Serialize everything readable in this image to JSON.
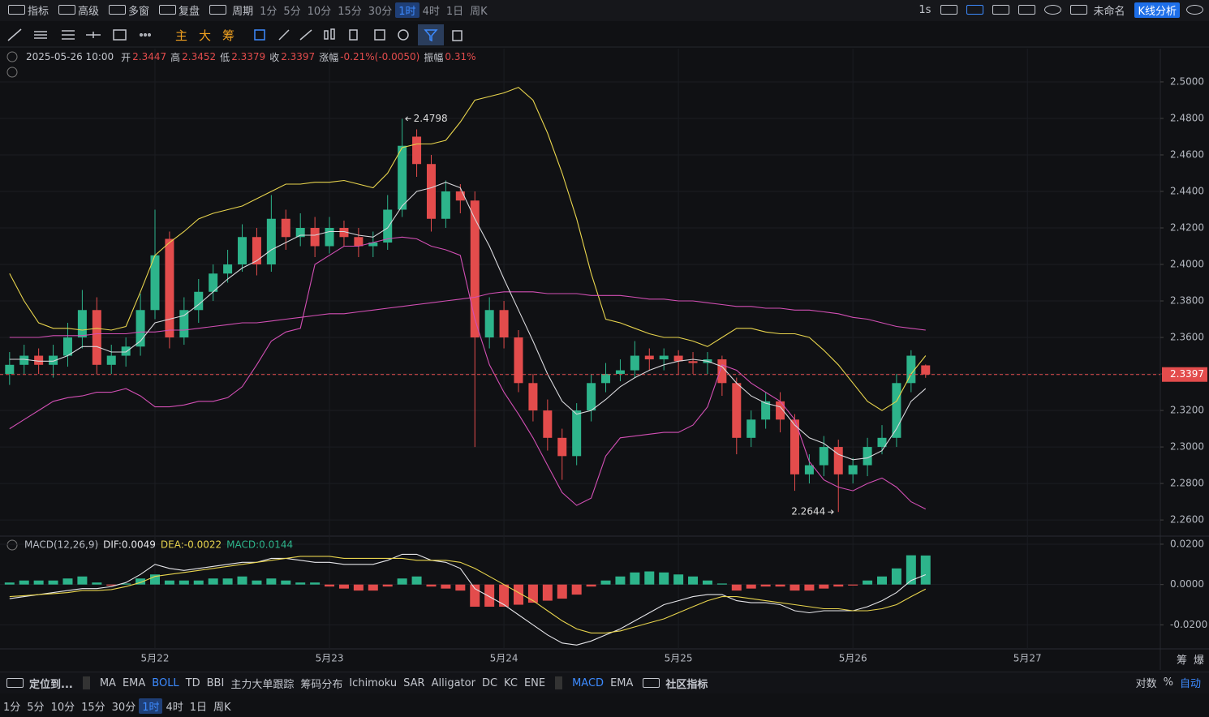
{
  "toolbar": {
    "menu": [
      "指标",
      "高级",
      "多窗",
      "复盘"
    ],
    "period": "周期",
    "intervals": [
      "1分",
      "5分",
      "10分",
      "15分",
      "30分",
      "1时",
      "4时",
      "1日",
      "周K"
    ],
    "active_interval": "1时",
    "speed": "1s",
    "layout_name": "未命名",
    "analysis": "K线分析"
  },
  "draw_toolbar": {
    "chips": [
      "主",
      "大",
      "筹"
    ]
  },
  "info": {
    "time": "2025-05-26 10:00",
    "fields": [
      {
        "label": "开",
        "value": "2.3447"
      },
      {
        "label": "高",
        "value": "2.3452"
      },
      {
        "label": "低",
        "value": "2.3379"
      },
      {
        "label": "收",
        "value": "2.3397"
      },
      {
        "label": "涨幅",
        "value": "-0.21%(-0.0050)"
      },
      {
        "label": "振幅",
        "value": "0.31%"
      }
    ]
  },
  "chart_data": [
    {
      "type": "candlestick",
      "up_color": "#2db48b",
      "down_color": "#e34c4c",
      "grid": true,
      "open": [
        2.34,
        2.345,
        2.35,
        2.345,
        2.35,
        2.36,
        2.375,
        2.345,
        2.35,
        2.355,
        2.375,
        2.414,
        2.36,
        2.375,
        2.385,
        2.395,
        2.4,
        2.415,
        2.4,
        2.425,
        2.415,
        2.42,
        2.41,
        2.42,
        2.415,
        2.41,
        2.412,
        2.43,
        2.47,
        2.455,
        2.425,
        2.44,
        2.435,
        2.36,
        2.375,
        2.36,
        2.335,
        2.32,
        2.305,
        2.295,
        2.32,
        2.335,
        2.34,
        2.342,
        2.35,
        2.348,
        2.35,
        2.347,
        2.346,
        2.348,
        2.335,
        2.305,
        2.315,
        2.325,
        2.315,
        2.285,
        2.29,
        2.3,
        2.285,
        2.29,
        2.3,
        2.305,
        2.335,
        2.3447
      ],
      "high": [
        2.352,
        2.356,
        2.354,
        2.356,
        2.368,
        2.386,
        2.382,
        2.356,
        2.36,
        2.384,
        2.43,
        2.418,
        2.382,
        2.392,
        2.4,
        2.408,
        2.422,
        2.42,
        2.438,
        2.43,
        2.428,
        2.426,
        2.426,
        2.424,
        2.42,
        2.418,
        2.438,
        2.4798,
        2.474,
        2.46,
        2.446,
        2.444,
        2.44,
        2.382,
        2.38,
        2.364,
        2.34,
        2.326,
        2.31,
        2.324,
        2.34,
        2.346,
        2.348,
        2.358,
        2.354,
        2.354,
        2.353,
        2.352,
        2.352,
        2.35,
        2.338,
        2.32,
        2.33,
        2.33,
        2.318,
        2.296,
        2.306,
        2.304,
        2.294,
        2.305,
        2.312,
        2.34,
        2.353,
        2.3452
      ],
      "low": [
        2.334,
        2.34,
        2.34,
        2.338,
        2.344,
        2.354,
        2.34,
        2.34,
        2.344,
        2.35,
        2.37,
        2.354,
        2.356,
        2.368,
        2.38,
        2.39,
        2.396,
        2.394,
        2.396,
        2.408,
        2.41,
        2.404,
        2.406,
        2.41,
        2.404,
        2.404,
        2.408,
        2.426,
        2.448,
        2.418,
        2.42,
        2.428,
        2.3,
        2.354,
        2.354,
        2.33,
        2.314,
        2.298,
        2.282,
        2.29,
        2.314,
        2.33,
        2.336,
        2.338,
        2.342,
        2.342,
        2.34,
        2.34,
        2.34,
        2.328,
        2.296,
        2.3,
        2.31,
        2.308,
        2.276,
        2.28,
        2.284,
        2.2644,
        2.28,
        2.284,
        2.296,
        2.3,
        2.33,
        2.3379
      ],
      "close": [
        2.345,
        2.35,
        2.345,
        2.35,
        2.36,
        2.375,
        2.345,
        2.35,
        2.355,
        2.375,
        2.405,
        2.36,
        2.375,
        2.385,
        2.395,
        2.4,
        2.415,
        2.4,
        2.425,
        2.415,
        2.42,
        2.41,
        2.42,
        2.415,
        2.41,
        2.412,
        2.43,
        2.465,
        2.455,
        2.425,
        2.44,
        2.435,
        2.36,
        2.375,
        2.36,
        2.335,
        2.32,
        2.305,
        2.295,
        2.32,
        2.335,
        2.34,
        2.342,
        2.35,
        2.348,
        2.35,
        2.347,
        2.346,
        2.348,
        2.335,
        2.305,
        2.315,
        2.325,
        2.315,
        2.285,
        2.29,
        2.3,
        2.285,
        2.29,
        2.3,
        2.305,
        2.335,
        2.35,
        2.3397
      ],
      "series": [
        {
          "color": "#e8d44d",
          "values": [
            2.395,
            2.38,
            2.368,
            2.365,
            2.365,
            2.364,
            2.365,
            2.364,
            2.366,
            2.385,
            2.405,
            2.412,
            2.418,
            2.425,
            2.428,
            2.43,
            2.432,
            2.436,
            2.44,
            2.444,
            2.444,
            2.445,
            2.445,
            2.446,
            2.444,
            2.442,
            2.45,
            2.464,
            2.466,
            2.466,
            2.468,
            2.478,
            2.49,
            2.492,
            2.494,
            2.497,
            2.49,
            2.472,
            2.45,
            2.425,
            2.395,
            2.37,
            2.368,
            2.365,
            2.362,
            2.36,
            2.36,
            2.358,
            2.355,
            2.36,
            2.365,
            2.365,
            2.363,
            2.362,
            2.362,
            2.36,
            2.353,
            2.345,
            2.335,
            2.325,
            2.32,
            2.325,
            2.34,
            2.35
          ]
        },
        {
          "color": "#d24fb4",
          "values": [
            2.36,
            2.36,
            2.36,
            2.361,
            2.361,
            2.361,
            2.362,
            2.362,
            2.362,
            2.363,
            2.363,
            2.364,
            2.364,
            2.365,
            2.366,
            2.367,
            2.368,
            2.368,
            2.369,
            2.37,
            2.371,
            2.372,
            2.373,
            2.373,
            2.374,
            2.375,
            2.376,
            2.377,
            2.378,
            2.379,
            2.38,
            2.381,
            2.382,
            2.384,
            2.385,
            2.385,
            2.385,
            2.384,
            2.384,
            2.384,
            2.383,
            2.383,
            2.383,
            2.382,
            2.381,
            2.381,
            2.38,
            2.38,
            2.379,
            2.378,
            2.377,
            2.377,
            2.376,
            2.376,
            2.375,
            2.375,
            2.374,
            2.373,
            2.371,
            2.37,
            2.368,
            2.366,
            2.365,
            2.364
          ]
        },
        {
          "color": "#d24fb4",
          "values": [
            2.31,
            2.315,
            2.32,
            2.325,
            2.327,
            2.328,
            2.33,
            2.33,
            2.332,
            2.328,
            2.322,
            2.322,
            2.323,
            2.325,
            2.325,
            2.327,
            2.333,
            2.345,
            2.358,
            2.363,
            2.365,
            2.4,
            2.405,
            2.41,
            2.41,
            2.412,
            2.414,
            2.415,
            2.414,
            2.41,
            2.408,
            2.405,
            2.37,
            2.345,
            2.33,
            2.318,
            2.305,
            2.29,
            2.275,
            2.268,
            2.272,
            2.295,
            2.305,
            2.306,
            2.307,
            2.308,
            2.308,
            2.312,
            2.322,
            2.345,
            2.342,
            2.335,
            2.33,
            2.325,
            2.315,
            2.292,
            2.282,
            2.278,
            2.276,
            2.28,
            2.283,
            2.278,
            2.27,
            2.266
          ]
        },
        {
          "color": "#d8d8dc",
          "values": [
            2.348,
            2.348,
            2.347,
            2.347,
            2.35,
            2.355,
            2.355,
            2.352,
            2.352,
            2.358,
            2.368,
            2.37,
            2.372,
            2.378,
            2.385,
            2.392,
            2.398,
            2.402,
            2.408,
            2.412,
            2.416,
            2.416,
            2.418,
            2.418,
            2.416,
            2.415,
            2.42,
            2.432,
            2.44,
            2.442,
            2.445,
            2.442,
            2.425,
            2.41,
            2.392,
            2.375,
            2.358,
            2.34,
            2.325,
            2.318,
            2.32,
            2.326,
            2.333,
            2.338,
            2.342,
            2.345,
            2.347,
            2.348,
            2.347,
            2.344,
            2.335,
            2.328,
            2.324,
            2.322,
            2.312,
            2.305,
            2.302,
            2.296,
            2.293,
            2.294,
            2.298,
            2.31,
            2.325,
            2.332
          ]
        }
      ],
      "ylim": [
        2.2516,
        2.5182
      ],
      "yticks": [
        {
          "value": 2.26,
          "label": "2.2600"
        },
        {
          "value": 2.28,
          "label": "2.2800"
        },
        {
          "value": 2.3,
          "label": "2.3000"
        },
        {
          "value": 2.32,
          "label": "2.3200"
        },
        {
          "value": 2.34,
          "label": "2.3400"
        },
        {
          "value": 2.36,
          "label": "2.3600"
        },
        {
          "value": 2.38,
          "label": "2.3800"
        },
        {
          "value": 2.4,
          "label": "2.4000"
        },
        {
          "value": 2.42,
          "label": "2.4200"
        },
        {
          "value": 2.44,
          "label": "2.4400"
        },
        {
          "value": 2.46,
          "label": "2.4600"
        },
        {
          "value": 2.48,
          "label": "2.4800"
        },
        {
          "value": 2.5,
          "label": "2.5000"
        }
      ],
      "last_price": 2.3397,
      "max_label": 2.4798,
      "min_label": 2.2644,
      "date_labels": [
        "5月22",
        "5月23",
        "5月24",
        "5月25",
        "5月26",
        "5月27"
      ]
    },
    {
      "type": "macd",
      "legend": [
        {
          "text": "MACD(12,26,9)",
          "color": "#b8bcc4"
        },
        {
          "text": "DIF:0.0049",
          "color": "#e6e6ea"
        },
        {
          "text": "DEA:-0.0022",
          "color": "#e8d44d"
        },
        {
          "text": "MACD:0.0144",
          "color": "#2db48b"
        }
      ],
      "histogram": {
        "up_color": "#2db48b",
        "down_color": "#e34c4c",
        "values": [
          0.001,
          0.002,
          0.002,
          0.002,
          0.003,
          0.004,
          0.001,
          -0.0005,
          0.0005,
          0.003,
          0.005,
          0.002,
          0.002,
          0.002,
          0.003,
          0.003,
          0.004,
          0.002,
          0.003,
          0.002,
          0.001,
          0.001,
          -0.001,
          -0.002,
          -0.003,
          -0.003,
          -0.001,
          0.003,
          0.004,
          -0.001,
          -0.002,
          -0.003,
          -0.011,
          -0.011,
          -0.011,
          -0.01,
          -0.009,
          -0.008,
          -0.007,
          -0.005,
          -0.001,
          0.002,
          0.004,
          0.006,
          0.0065,
          0.006,
          0.005,
          0.004,
          0.002,
          0.0005,
          -0.003,
          -0.002,
          -0.001,
          -0.001,
          -0.003,
          -0.003,
          -0.002,
          -0.001,
          -0.0005,
          0.002,
          0.004,
          0.008,
          0.0145,
          0.0144
        ]
      },
      "series": [
        {
          "color": "#e6e6ea",
          "values": [
            -0.007,
            -0.006,
            -0.005,
            -0.004,
            -0.003,
            -0.002,
            -0.002,
            -0.001,
            0.001,
            0.005,
            0.01,
            0.008,
            0.007,
            0.008,
            0.009,
            0.01,
            0.011,
            0.011,
            0.013,
            0.013,
            0.012,
            0.011,
            0.011,
            0.01,
            0.01,
            0.01,
            0.012,
            0.015,
            0.015,
            0.012,
            0.011,
            0.008,
            -0.002,
            -0.006,
            -0.01,
            -0.015,
            -0.02,
            -0.025,
            -0.029,
            -0.03,
            -0.028,
            -0.025,
            -0.022,
            -0.018,
            -0.014,
            -0.01,
            -0.008,
            -0.006,
            -0.005,
            -0.005,
            -0.008,
            -0.009,
            -0.009,
            -0.01,
            -0.013,
            -0.014,
            -0.013,
            -0.013,
            -0.013,
            -0.011,
            -0.008,
            -0.004,
            0.002,
            0.0049
          ]
        },
        {
          "color": "#e8d44d",
          "values": [
            -0.006,
            -0.0055,
            -0.005,
            -0.0045,
            -0.004,
            -0.003,
            -0.003,
            -0.0025,
            -0.001,
            0.001,
            0.004,
            0.005,
            0.006,
            0.007,
            0.008,
            0.009,
            0.01,
            0.011,
            0.012,
            0.013,
            0.014,
            0.014,
            0.014,
            0.013,
            0.013,
            0.013,
            0.013,
            0.013,
            0.012,
            0.012,
            0.012,
            0.011,
            0.008,
            0.004,
            0.0,
            -0.004,
            -0.008,
            -0.013,
            -0.018,
            -0.022,
            -0.024,
            -0.024,
            -0.023,
            -0.021,
            -0.019,
            -0.017,
            -0.014,
            -0.011,
            -0.008,
            -0.006,
            -0.006,
            -0.007,
            -0.008,
            -0.009,
            -0.01,
            -0.011,
            -0.012,
            -0.012,
            -0.013,
            -0.013,
            -0.012,
            -0.01,
            -0.006,
            -0.0022
          ]
        }
      ],
      "ylim": [
        -0.0319,
        0.0236
      ],
      "yticks": [
        {
          "value": -0.02,
          "label": "-0.0200"
        },
        {
          "value": 0,
          "label": "0.0000"
        },
        {
          "value": 0.02,
          "label": "0.0200"
        }
      ]
    }
  ],
  "bottom": {
    "locate": "定位到...",
    "main_indicators": [
      "MA",
      "EMA",
      "BOLL",
      "TD",
      "BBI",
      "主力大单跟踪",
      "筹码分布",
      "Ichimoku",
      "SAR",
      "Alligator",
      "DC",
      "KC",
      "ENE"
    ],
    "active_main": "BOLL",
    "sub_indicators": [
      "MACD",
      "EMA"
    ],
    "active_sub": "MACD",
    "community": "社区指标",
    "scale_options": [
      "对数",
      "%",
      "自动"
    ],
    "active_scale": "自动",
    "intervals": [
      "1分",
      "5分",
      "10分",
      "15分",
      "30分",
      "1时",
      "4时",
      "1日",
      "周K"
    ],
    "active_interval": "1时"
  },
  "corner": [
    "筹",
    "爆"
  ]
}
